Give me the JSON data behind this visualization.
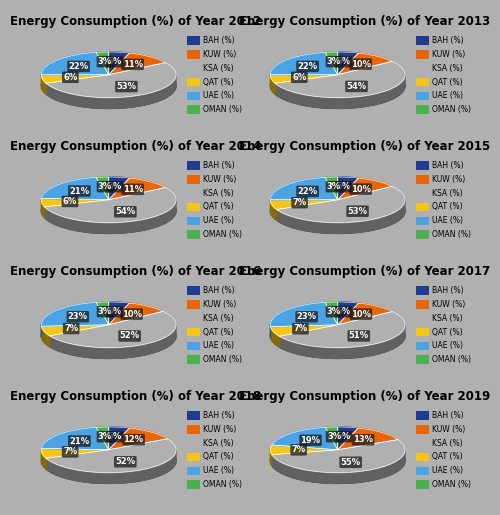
{
  "years": [
    2012,
    2013,
    2014,
    2015,
    2016,
    2017,
    2018,
    2019
  ],
  "labels": [
    "BAH (%)",
    "KUW (%)",
    "KSA (%)",
    "QAT (%)",
    "UAE (%)",
    "OMAN (%)"
  ],
  "colors": [
    "#1F3A8F",
    "#E8650A",
    "#B0B0B0",
    "#F5C518",
    "#4BA3E3",
    "#4CAF50"
  ],
  "data": {
    "2012": [
      5,
      11,
      53,
      6,
      22,
      3
    ],
    "2013": [
      5,
      10,
      54,
      6,
      22,
      3
    ],
    "2014": [
      5,
      11,
      54,
      6,
      21,
      3
    ],
    "2015": [
      5,
      10,
      53,
      7,
      22,
      3
    ],
    "2016": [
      5,
      10,
      52,
      7,
      23,
      3
    ],
    "2017": [
      5,
      10,
      51,
      7,
      23,
      3
    ],
    "2018": [
      5,
      12,
      52,
      7,
      21,
      3
    ],
    "2019": [
      5,
      13,
      55,
      7,
      19,
      3
    ]
  },
  "outer_bg": "#B0B0B0",
  "panel_bg": "#D8D8D8",
  "title_fontsize": 8.5,
  "label_fontsize": 6,
  "legend_fontsize": 5.5
}
